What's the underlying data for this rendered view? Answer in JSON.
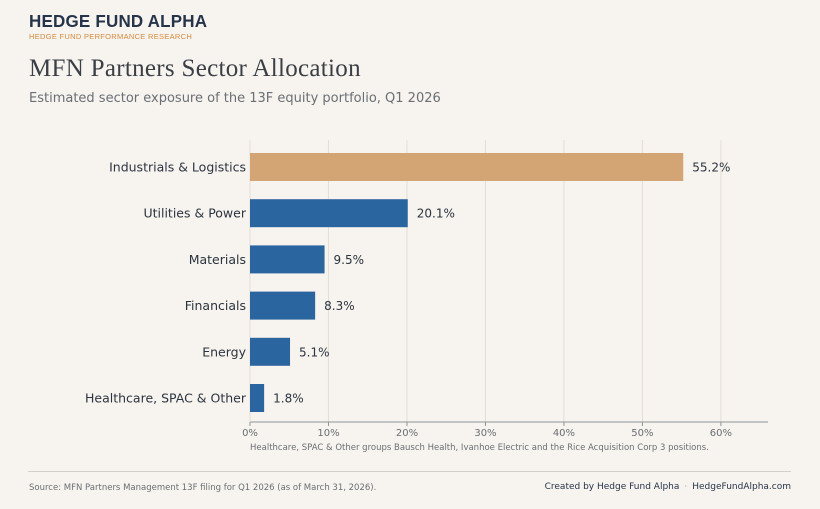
{
  "brand": {
    "name": "HEDGE FUND ALPHA",
    "tagline": "HEDGE FUND PERFORMANCE RESEARCH"
  },
  "header": {
    "title": "MFN Partners Sector Allocation",
    "subtitle": "Estimated sector exposure of the 13F equity portfolio, Q1 2026"
  },
  "chart_data": {
    "type": "bar",
    "orientation": "horizontal",
    "categories": [
      "Industrials & Logistics",
      "Utilities & Power",
      "Materials",
      "Financials",
      "Energy",
      "Healthcare, SPAC & Other"
    ],
    "values": [
      55.2,
      20.1,
      9.5,
      8.3,
      5.1,
      1.8
    ],
    "data_labels": [
      "55.2%",
      "20.1%",
      "9.5%",
      "8.3%",
      "5.1%",
      "1.8%"
    ],
    "highlight_index": 0,
    "xlim": [
      0,
      66
    ],
    "xticks": [
      0,
      10,
      20,
      30,
      40,
      50,
      60
    ],
    "xtick_labels": [
      "0%",
      "10%",
      "20%",
      "30%",
      "40%",
      "50%",
      "60%"
    ],
    "grid": true,
    "annotation": "Healthcare, SPAC & Other groups Bausch Health, Ivanhoe Electric and the Rice Acquisition Corp 3 positions.",
    "colors": {
      "highlight": "#d4a574",
      "bar": "#2b65a0",
      "grid": "#e3ddd5",
      "axis": "#8f949a"
    }
  },
  "footer": {
    "source": "Source: MFN Partners Management 13F filing for Q1 2026 (as of March 31, 2026).",
    "created_by": "Created by Hedge Fund Alpha",
    "separator": "·",
    "website": "HedgeFundAlpha.com"
  }
}
